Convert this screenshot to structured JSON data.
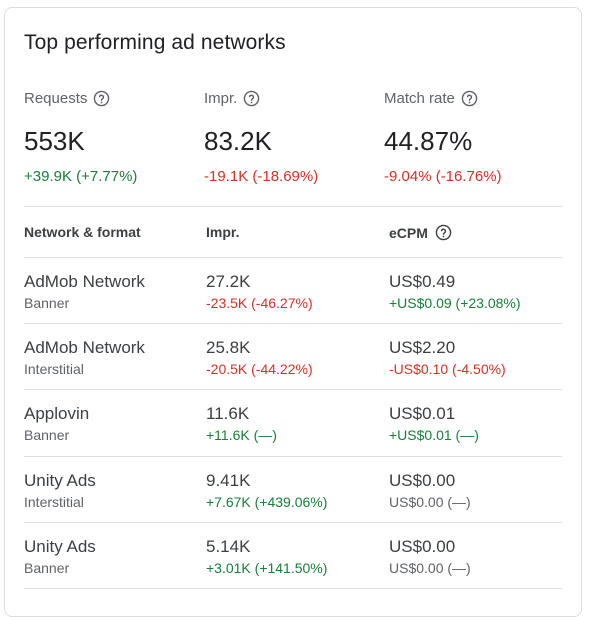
{
  "card": {
    "title": "Top performing ad networks"
  },
  "metrics": [
    {
      "label": "Requests",
      "value": "553K",
      "delta": "+39.9K (+7.77%)",
      "trend": "pos"
    },
    {
      "label": "Impr.",
      "value": "83.2K",
      "delta": "-19.1K (-18.69%)",
      "trend": "neg"
    },
    {
      "label": "Match rate",
      "value": "44.87%",
      "delta": "-9.04% (-16.76%)",
      "trend": "neg"
    }
  ],
  "table": {
    "headers": {
      "network": "Network & format",
      "impr": "Impr.",
      "ecpm": "eCPM"
    },
    "rows": [
      {
        "network": "AdMob Network",
        "format": "Banner",
        "impr": "27.2K",
        "impr_delta": "-23.5K (-46.27%)",
        "impr_trend": "neg",
        "ecpm": "US$0.49",
        "ecpm_delta": "+US$0.09 (+23.08%)",
        "ecpm_trend": "pos"
      },
      {
        "network": "AdMob Network",
        "format": "Interstitial",
        "impr": "25.8K",
        "impr_delta": "-20.5K (-44.22%)",
        "impr_trend": "neg",
        "ecpm": "US$2.20",
        "ecpm_delta": "-US$0.10 (-4.50%)",
        "ecpm_trend": "neg"
      },
      {
        "network": "Applovin",
        "format": "Banner",
        "impr": "11.6K",
        "impr_delta": "+11.6K (—)",
        "impr_trend": "pos",
        "ecpm": "US$0.01",
        "ecpm_delta": "+US$0.01 (—)",
        "ecpm_trend": "pos"
      },
      {
        "network": "Unity Ads",
        "format": "Interstitial",
        "impr": "9.41K",
        "impr_delta": "+7.67K (+439.06%)",
        "impr_trend": "pos",
        "ecpm": "US$0.00",
        "ecpm_delta": "US$0.00 (—)",
        "ecpm_trend": "neu"
      },
      {
        "network": "Unity Ads",
        "format": "Banner",
        "impr": "5.14K",
        "impr_delta": "+3.01K (+141.50%)",
        "impr_trend": "pos",
        "ecpm": "US$0.00",
        "ecpm_delta": "US$0.00 (—)",
        "ecpm_trend": "neu"
      }
    ]
  },
  "colors": {
    "positive": "#188038",
    "negative": "#d93025",
    "neutral": "#5f6368",
    "border": "#dadce0"
  },
  "icons": {
    "help": "help-circle-icon"
  }
}
